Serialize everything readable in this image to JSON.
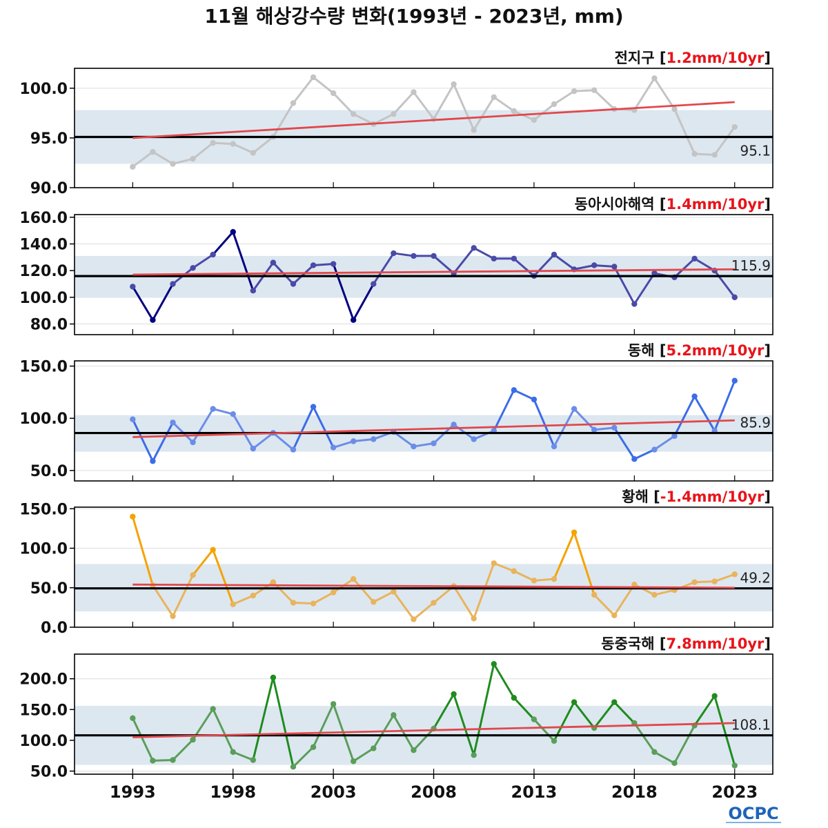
{
  "title": "11월 해상강수량 변화(1993년 - 2023년, mm)",
  "logo": "OCPC",
  "colors": {
    "band": "#dde7f0",
    "mean_line": "#000000",
    "trend_line": "#e0484c",
    "trend_value": "#e8141a",
    "grid": "#dddddd"
  },
  "x_ticks": [
    1993,
    1998,
    2003,
    2008,
    2013,
    2018,
    2023
  ],
  "chart_data": [
    {
      "type": "line",
      "name": "전지구",
      "trend_label": "1.2mm/10yr",
      "color": "#c4c4c4",
      "x": [
        1993,
        1994,
        1995,
        1996,
        1997,
        1998,
        1999,
        2000,
        2001,
        2002,
        2003,
        2004,
        2005,
        2006,
        2007,
        2008,
        2009,
        2010,
        2011,
        2012,
        2013,
        2014,
        2015,
        2016,
        2017,
        2018,
        2019,
        2020,
        2021,
        2022,
        2023
      ],
      "values": [
        92.1,
        93.6,
        92.4,
        92.9,
        94.5,
        94.4,
        93.5,
        95.1,
        98.5,
        101.1,
        99.5,
        97.4,
        96.4,
        97.4,
        99.6,
        96.9,
        100.4,
        95.8,
        99.1,
        97.7,
        96.8,
        98.4,
        99.7,
        99.8,
        97.9,
        97.8,
        101.0,
        97.9,
        93.4,
        93.3,
        96.1
      ],
      "mean": 95.1,
      "mean_label": "95.1",
      "band": [
        92.4,
        97.8
      ],
      "trend": [
        95.0,
        98.6
      ],
      "ylim": [
        90,
        102
      ],
      "yticks": [
        90.0,
        95.0,
        100.0
      ],
      "ytick_labels": [
        "90.0",
        "95.0",
        "100.0"
      ]
    },
    {
      "type": "line",
      "name": "동아시아해역",
      "trend_label": "1.4mm/10yr",
      "color": "#4a4aa8",
      "peak_color": "#000080",
      "x": [
        1993,
        1994,
        1995,
        1996,
        1997,
        1998,
        1999,
        2000,
        2001,
        2002,
        2003,
        2004,
        2005,
        2006,
        2007,
        2008,
        2009,
        2010,
        2011,
        2012,
        2013,
        2014,
        2015,
        2016,
        2017,
        2018,
        2019,
        2020,
        2021,
        2022,
        2023
      ],
      "values": [
        108,
        83,
        110,
        122,
        132,
        149,
        105,
        126,
        110,
        124,
        125,
        83,
        110,
        133,
        131,
        131,
        118,
        137,
        129,
        129,
        116,
        132,
        121,
        124,
        123,
        95,
        118,
        115,
        129,
        120,
        100
      ],
      "mean": 115.9,
      "mean_label": "115.9",
      "band": [
        100,
        131
      ],
      "trend": [
        117,
        121
      ],
      "ylim": [
        72,
        162
      ],
      "yticks": [
        80.0,
        100.0,
        120.0,
        140.0,
        160.0
      ],
      "ytick_labels": [
        "80.0",
        "100.0",
        "120.0",
        "140.0",
        "160.0"
      ]
    },
    {
      "type": "line",
      "name": "동해",
      "trend_label": "5.2mm/10yr",
      "color": "#6b8de8",
      "peak_color": "#3c6ce8",
      "x": [
        1993,
        1994,
        1995,
        1996,
        1997,
        1998,
        1999,
        2000,
        2001,
        2002,
        2003,
        2004,
        2005,
        2006,
        2007,
        2008,
        2009,
        2010,
        2011,
        2012,
        2013,
        2014,
        2015,
        2016,
        2017,
        2018,
        2019,
        2020,
        2021,
        2022,
        2023
      ],
      "values": [
        99,
        59,
        96,
        77,
        109,
        104,
        71,
        86,
        70,
        111,
        72,
        78,
        80,
        87,
        73,
        76,
        94,
        80,
        88,
        127,
        118,
        73,
        109,
        89,
        91,
        61,
        70,
        83,
        121,
        88,
        136
      ],
      "mean": 85.9,
      "mean_label": "85.9",
      "band": [
        68,
        103
      ],
      "trend": [
        82,
        98
      ],
      "ylim": [
        40,
        155
      ],
      "yticks": [
        50.0,
        100.0,
        150.0
      ],
      "ytick_labels": [
        "50.0",
        "100.0",
        "150.0"
      ]
    },
    {
      "type": "line",
      "name": "황해",
      "trend_label": "-1.4mm/10yr",
      "color": "#e8b45c",
      "peak_color": "#f5a300",
      "x": [
        1993,
        1994,
        1995,
        1996,
        1997,
        1998,
        1999,
        2000,
        2001,
        2002,
        2003,
        2004,
        2005,
        2006,
        2007,
        2008,
        2009,
        2010,
        2011,
        2012,
        2013,
        2014,
        2015,
        2016,
        2017,
        2018,
        2019,
        2020,
        2021,
        2022,
        2023
      ],
      "values": [
        140,
        53,
        14,
        66,
        98,
        29,
        40,
        57,
        31,
        30,
        44,
        61,
        32,
        45,
        10,
        31,
        52,
        11,
        81,
        71,
        59,
        61,
        120,
        41,
        15,
        54,
        41,
        47,
        57,
        58,
        67
      ],
      "mean": 49.2,
      "mean_label": "49.2",
      "band": [
        20,
        80
      ],
      "trend": [
        54,
        50
      ],
      "ylim": [
        0,
        152
      ],
      "yticks": [
        0.0,
        50.0,
        100.0,
        150.0
      ],
      "ytick_labels": [
        "0.0",
        "50.0",
        "100.0",
        "150.0"
      ]
    },
    {
      "type": "line",
      "name": "동중국해",
      "trend_label": "7.8mm/10yr",
      "color": "#5a9e5a",
      "peak_color": "#1e8c1e",
      "x": [
        1993,
        1994,
        1995,
        1996,
        1997,
        1998,
        1999,
        2000,
        2001,
        2002,
        2003,
        2004,
        2005,
        2006,
        2007,
        2008,
        2009,
        2010,
        2011,
        2012,
        2013,
        2014,
        2015,
        2016,
        2017,
        2018,
        2019,
        2020,
        2021,
        2022,
        2023
      ],
      "values": [
        136,
        67,
        68,
        101,
        151,
        81,
        68,
        202,
        57,
        89,
        159,
        66,
        87,
        141,
        84,
        119,
        175,
        76,
        224,
        169,
        134,
        99,
        162,
        120,
        162,
        128,
        81,
        63,
        124,
        172,
        59
      ],
      "mean": 108.1,
      "mean_label": "108.1",
      "band": [
        60,
        156
      ],
      "trend": [
        105,
        128
      ],
      "ylim": [
        45,
        240
      ],
      "yticks": [
        50.0,
        100.0,
        150.0,
        200.0
      ],
      "ytick_labels": [
        "50.0",
        "100.0",
        "150.0",
        "200.0"
      ]
    }
  ]
}
